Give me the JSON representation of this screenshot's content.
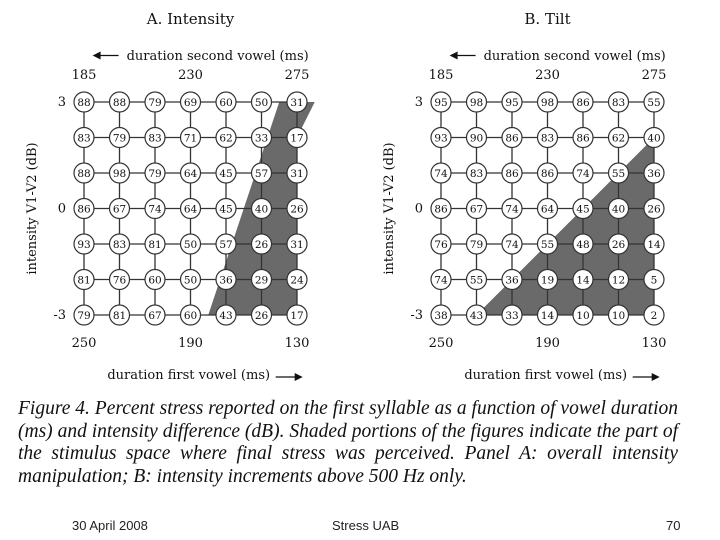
{
  "colors": {
    "shade": "#6a6a6a",
    "line": "#333333",
    "text": "#111111",
    "circle_fill": "#ffffff"
  },
  "chart_data": [
    {
      "type": "table",
      "panel": "A",
      "title": "A. Intensity",
      "top_axis_label": "duration second vowel (ms)",
      "top_axis_arrow": "left",
      "top_ticks": [
        "185",
        "230",
        "275"
      ],
      "bottom_axis_label": "duration first vowel (ms)",
      "bottom_axis_arrow": "right",
      "bottom_ticks": [
        "250",
        "190",
        "130"
      ],
      "ylabel": "intensity V1-V2 (dB)",
      "y_ticks": [
        "3",
        "0",
        "-3"
      ],
      "values": [
        [
          88,
          88,
          79,
          69,
          60,
          50,
          31
        ],
        [
          83,
          79,
          83,
          71,
          62,
          33,
          17
        ],
        [
          88,
          98,
          79,
          64,
          45,
          57,
          31
        ],
        [
          86,
          67,
          74,
          64,
          45,
          40,
          26
        ],
        [
          93,
          83,
          81,
          50,
          57,
          26,
          31
        ],
        [
          81,
          76,
          60,
          50,
          36,
          29,
          24
        ],
        [
          79,
          81,
          67,
          60,
          43,
          26,
          17
        ]
      ],
      "shaded_region_vertices": [
        [
          6.5,
          0
        ],
        [
          5.5,
          0
        ],
        [
          3.5,
          6
        ],
        [
          6,
          6
        ],
        [
          6,
          1
        ]
      ]
    },
    {
      "type": "table",
      "panel": "B",
      "title": "B. Tilt",
      "top_axis_label": "duration second vowel (ms)",
      "top_axis_arrow": "left",
      "top_ticks": [
        "185",
        "230",
        "275"
      ],
      "bottom_axis_label": "duration first vowel (ms)",
      "bottom_axis_arrow": "right",
      "bottom_ticks": [
        "250",
        "190",
        "130"
      ],
      "ylabel": "intensity V1-V2 (dB)",
      "y_ticks": [
        "3",
        "0",
        "-3"
      ],
      "values": [
        [
          95,
          98,
          95,
          98,
          86,
          83,
          55
        ],
        [
          93,
          90,
          86,
          83,
          86,
          62,
          40
        ],
        [
          74,
          83,
          86,
          86,
          74,
          55,
          36
        ],
        [
          86,
          67,
          74,
          64,
          45,
          40,
          26
        ],
        [
          76,
          79,
          74,
          55,
          48,
          26,
          14
        ],
        [
          74,
          55,
          36,
          19,
          14,
          12,
          5
        ],
        [
          38,
          43,
          33,
          14,
          10,
          10,
          2
        ]
      ],
      "shaded_region_vertices": [
        [
          6,
          1
        ],
        [
          1,
          6
        ],
        [
          6,
          6
        ]
      ]
    }
  ],
  "caption": "Figure 4. Percent stress reported on the first syllable as a function of vowel duration (ms) and intensity difference (dB). Shaded portions of the figures indicate the part of the stimulus space where final stress was perceived. Panel A: overall intensity manipulation; B: intensity increments above 500 Hz only.",
  "footer": {
    "date": "30 April 2008",
    "title": "Stress UAB",
    "page": "70"
  }
}
